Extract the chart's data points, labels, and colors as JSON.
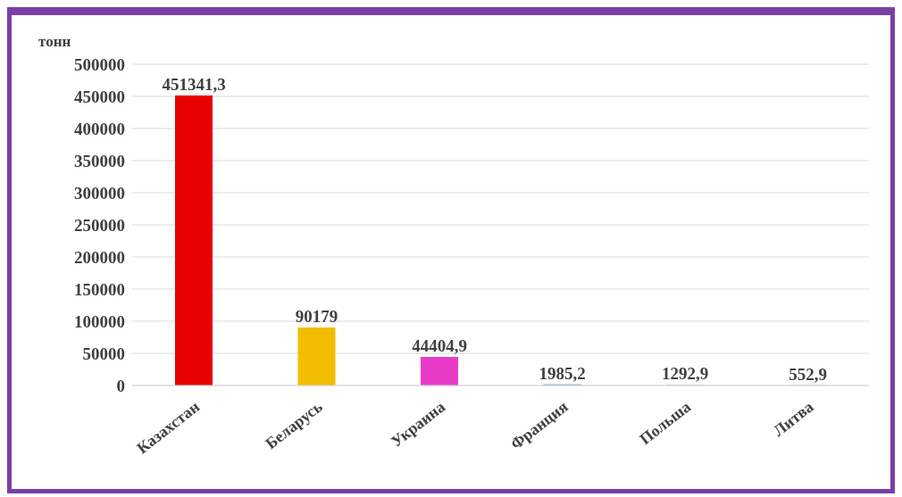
{
  "chart_data": {
    "type": "bar",
    "ylabel": "тонн",
    "categories": [
      "Казахстан",
      "Беларусь",
      "Украина",
      "Франция",
      "Польша",
      "Литва"
    ],
    "values": [
      451341.3,
      90179,
      44404.9,
      1985.2,
      1292.9,
      552.9
    ],
    "value_labels": [
      "451341,3",
      "90179",
      "44404,9",
      "1985,2",
      "1292,9",
      "552,9"
    ],
    "colors": [
      "#e80000",
      "#f2bd00",
      "#e83cc8",
      "#8fb4e0",
      "#c8c8c8",
      "#c8c8c8"
    ],
    "ylim": [
      0,
      500000
    ],
    "yticks": [
      0,
      50000,
      100000,
      150000,
      200000,
      250000,
      300000,
      350000,
      400000,
      450000,
      500000
    ],
    "grid": "y"
  }
}
